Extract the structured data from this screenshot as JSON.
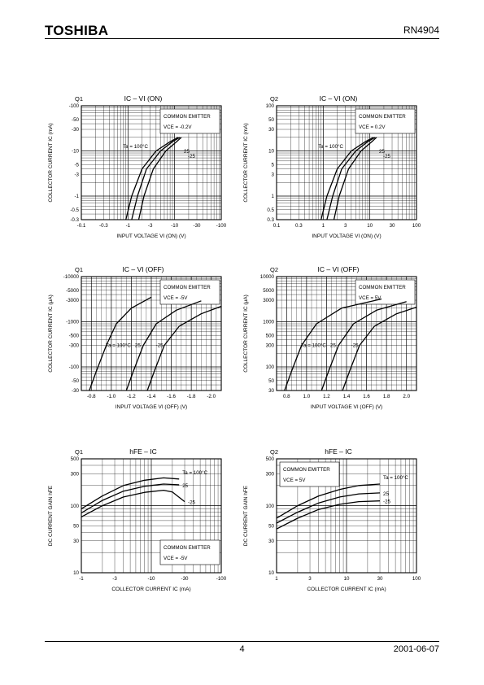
{
  "header": {
    "brand": "TOSHIBA",
    "part": "RN4904"
  },
  "footer": {
    "page": "4",
    "date": "2001-06-07"
  },
  "chart_data": [
    {
      "id": "c1",
      "type": "line",
      "panel": "Q1",
      "title": "IC – VI (ON)",
      "xlabel": "INPUT VOLTAGE  VI (ON)  (V)",
      "ylabel": "COLLECTOR CURRENT  IC  (mA)",
      "xscale": "log",
      "yscale": "log",
      "xlim": [
        -0.1,
        -100
      ],
      "ylim": [
        -0.3,
        -100
      ],
      "xticks": [
        "-0.1",
        "-0.3",
        "-1",
        "-3",
        "-10",
        "-30",
        "-100"
      ],
      "yticks": [
        "-100",
        "-50",
        "-30",
        "-10",
        "-5",
        "-3",
        "-1",
        "-0.5",
        "-0.3"
      ],
      "box": [
        "COMMON EMITTER",
        "VCE = -0.2V"
      ],
      "series": [
        {
          "name": "Ta = 100°C",
          "x": [
            -0.9,
            -1.2,
            -2,
            -4,
            -8,
            -12
          ],
          "y": [
            -0.3,
            -1,
            -4,
            -10,
            -16,
            -20
          ]
        },
        {
          "name": "25",
          "x": [
            -1.2,
            -1.6,
            -2.5,
            -5,
            -9,
            -13
          ],
          "y": [
            -0.3,
            -1,
            -4,
            -10,
            -16,
            -20
          ]
        },
        {
          "name": "-25",
          "x": [
            -1.7,
            -2.2,
            -3.5,
            -6.5,
            -11,
            -14
          ],
          "y": [
            -0.3,
            -1,
            -4,
            -10,
            -16,
            -20
          ]
        }
      ],
      "curve_labels": [
        "Ta = 100°C",
        "25",
        "-25"
      ]
    },
    {
      "id": "c2",
      "type": "line",
      "panel": "Q2",
      "title": "IC – VI (ON)",
      "xlabel": "INPUT VOLTAGE  VI (ON)  (V)",
      "ylabel": "COLLECTOR CURRENT  IC  (mA)",
      "xscale": "log",
      "yscale": "log",
      "xlim": [
        0.1,
        100
      ],
      "ylim": [
        0.3,
        100
      ],
      "xticks": [
        "0.1",
        "0.3",
        "1",
        "3",
        "10",
        "30",
        "100"
      ],
      "yticks": [
        "100",
        "50",
        "30",
        "10",
        "5",
        "3",
        "1",
        "0.5",
        "0.3"
      ],
      "box": [
        "COMMON EMITTER",
        "VCE = 0.2V"
      ],
      "series": [
        {
          "name": "Ta = 100°C",
          "x": [
            0.9,
            1.2,
            2,
            4,
            8,
            12
          ],
          "y": [
            0.3,
            1,
            4,
            10,
            16,
            20
          ]
        },
        {
          "name": "25",
          "x": [
            1.2,
            1.6,
            2.5,
            5,
            9,
            13
          ],
          "y": [
            0.3,
            1,
            4,
            10,
            16,
            20
          ]
        },
        {
          "name": "-25",
          "x": [
            1.7,
            2.2,
            3.5,
            6.5,
            11,
            14
          ],
          "y": [
            0.3,
            1,
            4,
            10,
            16,
            20
          ]
        }
      ],
      "curve_labels": [
        "Ta = 100°C",
        "25",
        "-25"
      ]
    },
    {
      "id": "c3",
      "type": "line",
      "panel": "Q1",
      "title": "IC – VI (OFF)",
      "xlabel": "INPUT VOLTAGE  VI (OFF)  (V)",
      "ylabel": "COLLECTOR CURRENT  IC  (μA)",
      "xscale": "linear",
      "yscale": "log",
      "xlim": [
        -0.7,
        -2.1
      ],
      "ylim": [
        -30,
        -10000
      ],
      "xticks": [
        "-0.8",
        "-1.0",
        "-1.2",
        "-1.4",
        "-1.6",
        "-1.8",
        "-2.0"
      ],
      "yticks": [
        "-10000",
        "-5000",
        "-3000",
        "-1000",
        "-500",
        "-300",
        "-100",
        "-50",
        "-30"
      ],
      "box": [
        "COMMON EMITTER",
        "VCE = -5V"
      ],
      "series": [
        {
          "name": "Ta = 100°C",
          "x": [
            -0.78,
            -0.85,
            -0.95,
            -1.05,
            -1.2,
            -1.4
          ],
          "y": [
            -30,
            -80,
            -300,
            -900,
            -2000,
            -3500
          ]
        },
        {
          "name": "25",
          "x": [
            -1.15,
            -1.22,
            -1.32,
            -1.45,
            -1.65,
            -1.9
          ],
          "y": [
            -30,
            -80,
            -300,
            -900,
            -1800,
            -2900
          ]
        },
        {
          "name": "-25",
          "x": [
            -1.36,
            -1.43,
            -1.53,
            -1.68,
            -1.9,
            -2.1
          ],
          "y": [
            -30,
            -80,
            -300,
            -800,
            -1500,
            -2200
          ]
        }
      ],
      "curve_labels": [
        "Ta = 100°C",
        "25",
        "-25"
      ]
    },
    {
      "id": "c4",
      "type": "line",
      "panel": "Q2",
      "title": "IC – VI (OFF)",
      "xlabel": "INPUT VOLTAGE  VI (OFF)  (V)",
      "ylabel": "COLLECTOR CURRENT  IC  (μA)",
      "xscale": "linear",
      "yscale": "log",
      "xlim": [
        0.7,
        2.1
      ],
      "ylim": [
        30,
        10000
      ],
      "xticks": [
        "0.8",
        "1.0",
        "1.2",
        "1.4",
        "1.6",
        "1.8",
        "2.0"
      ],
      "yticks": [
        "10000",
        "5000",
        "3000",
        "1000",
        "500",
        "300",
        "100",
        "50",
        "30"
      ],
      "box": [
        "COMMON EMITTER",
        "VCE = 5V"
      ],
      "series": [
        {
          "name": "Ta = 100°C",
          "x": [
            0.78,
            0.85,
            0.95,
            1.1,
            1.35,
            1.75
          ],
          "y": [
            30,
            80,
            300,
            900,
            2000,
            3200
          ]
        },
        {
          "name": "25",
          "x": [
            1.15,
            1.22,
            1.32,
            1.47,
            1.7,
            2.0
          ],
          "y": [
            30,
            80,
            300,
            900,
            1800,
            2800
          ]
        },
        {
          "name": "-25",
          "x": [
            1.36,
            1.43,
            1.53,
            1.68,
            1.9,
            2.1
          ],
          "y": [
            30,
            80,
            300,
            800,
            1500,
            2100
          ]
        }
      ],
      "curve_labels": [
        "Ta = 100°C",
        "25",
        "-25"
      ]
    },
    {
      "id": "c5",
      "type": "line",
      "panel": "Q1",
      "title": "hFE – IC",
      "xlabel": "COLLECTOR CURRENT  IC  (mA)",
      "ylabel": "DC CURRENT GAIN  hFE",
      "xscale": "log",
      "yscale": "log",
      "xlim": [
        -1,
        -100
      ],
      "ylim": [
        10,
        500
      ],
      "xticks": [
        "-1",
        "-3",
        "-10",
        "-30",
        "-100"
      ],
      "yticks": [
        "500",
        "300",
        "100",
        "50",
        "30",
        "10"
      ],
      "box": [
        "COMMON EMITTER",
        "VCE = -5V"
      ],
      "series": [
        {
          "name": "Ta = 100°C",
          "x": [
            -1,
            -2,
            -4,
            -8,
            -15,
            -25
          ],
          "y": [
            90,
            140,
            200,
            240,
            260,
            250
          ]
        },
        {
          "name": "25",
          "x": [
            -1,
            -2,
            -4,
            -8,
            -15,
            -25
          ],
          "y": [
            78,
            120,
            165,
            195,
            210,
            205
          ]
        },
        {
          "name": "-25",
          "x": [
            -1,
            -2,
            -4,
            -8,
            -15,
            -20,
            -30
          ],
          "y": [
            68,
            100,
            135,
            158,
            170,
            160,
            115
          ]
        }
      ],
      "curve_labels": [
        "Ta = 100°C",
        "25",
        "-25"
      ]
    },
    {
      "id": "c6",
      "type": "line",
      "panel": "Q2",
      "title": "hFE – IC",
      "xlabel": "COLLECTOR CURRENT  IC  (mA)",
      "ylabel": "DC CURRENT GAIN  hFE",
      "xscale": "log",
      "yscale": "log",
      "xlim": [
        1,
        100
      ],
      "ylim": [
        10,
        500
      ],
      "xticks": [
        "1",
        "3",
        "10",
        "30",
        "100"
      ],
      "yticks": [
        "500",
        "300",
        "100",
        "50",
        "30",
        "10"
      ],
      "box": [
        "COMMON EMITTER",
        "VCE = 5V"
      ],
      "series": [
        {
          "name": "Ta = 100°C",
          "x": [
            1,
            2,
            4,
            8,
            15,
            30
          ],
          "y": [
            65,
            100,
            140,
            175,
            200,
            210
          ]
        },
        {
          "name": "25",
          "x": [
            1,
            2,
            4,
            8,
            15,
            30
          ],
          "y": [
            55,
            80,
            110,
            135,
            150,
            155
          ]
        },
        {
          "name": "-25",
          "x": [
            1,
            2,
            4,
            8,
            15,
            30
          ],
          "y": [
            45,
            65,
            88,
            105,
            115,
            118
          ]
        }
      ],
      "curve_labels": [
        "Ta = 100°C",
        "25",
        "-25"
      ]
    }
  ]
}
